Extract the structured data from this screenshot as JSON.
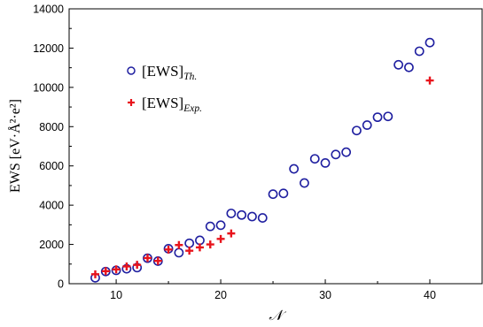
{
  "chart_data": {
    "type": "scatter",
    "xlabel": "𝒩",
    "ylabel": "EWS [eV·Å²·e²]",
    "xlim": [
      5.5,
      45
    ],
    "ylim": [
      0,
      14000
    ],
    "xticks": [
      10,
      20,
      30,
      40
    ],
    "xtick_labels": [
      "10",
      "20",
      "30",
      "40"
    ],
    "yticks": [
      0,
      2000,
      4000,
      6000,
      8000,
      10000,
      12000,
      14000
    ],
    "ytick_labels": [
      "0",
      "2000",
      "4000",
      "6000",
      "8000",
      "10000",
      "12000",
      "14000"
    ],
    "legend_position": "upper-left",
    "series": [
      {
        "name": "[EWS]",
        "name_subscript": "Th.",
        "marker": "open-circle",
        "color": "#1f1fa0",
        "points": [
          [
            8,
            300
          ],
          [
            9,
            620
          ],
          [
            10,
            680
          ],
          [
            11,
            760
          ],
          [
            12,
            820
          ],
          [
            13,
            1300
          ],
          [
            14,
            1150
          ],
          [
            15,
            1780
          ],
          [
            16,
            1580
          ],
          [
            17,
            2060
          ],
          [
            18,
            2210
          ],
          [
            19,
            2920
          ],
          [
            20,
            2980
          ],
          [
            21,
            3580
          ],
          [
            22,
            3500
          ],
          [
            23,
            3420
          ],
          [
            24,
            3350
          ],
          [
            25,
            4560
          ],
          [
            26,
            4600
          ],
          [
            27,
            5850
          ],
          [
            28,
            5130
          ],
          [
            29,
            6360
          ],
          [
            30,
            6150
          ],
          [
            31,
            6580
          ],
          [
            32,
            6700
          ],
          [
            33,
            7800
          ],
          [
            34,
            8080
          ],
          [
            35,
            8480
          ],
          [
            36,
            8520
          ],
          [
            37,
            11150
          ],
          [
            38,
            11020
          ],
          [
            39,
            11840
          ],
          [
            40,
            12280
          ]
        ]
      },
      {
        "name": "[EWS]",
        "name_subscript": "Exp.",
        "marker": "plus",
        "color": "#e8141c",
        "points": [
          [
            8,
            480
          ],
          [
            9,
            640
          ],
          [
            10,
            730
          ],
          [
            11,
            880
          ],
          [
            12,
            960
          ],
          [
            13,
            1310
          ],
          [
            14,
            1160
          ],
          [
            15,
            1740
          ],
          [
            16,
            1970
          ],
          [
            17,
            1680
          ],
          [
            18,
            1850
          ],
          [
            19,
            2000
          ],
          [
            20,
            2280
          ],
          [
            21,
            2560
          ],
          [
            40,
            10350
          ]
        ]
      }
    ]
  }
}
